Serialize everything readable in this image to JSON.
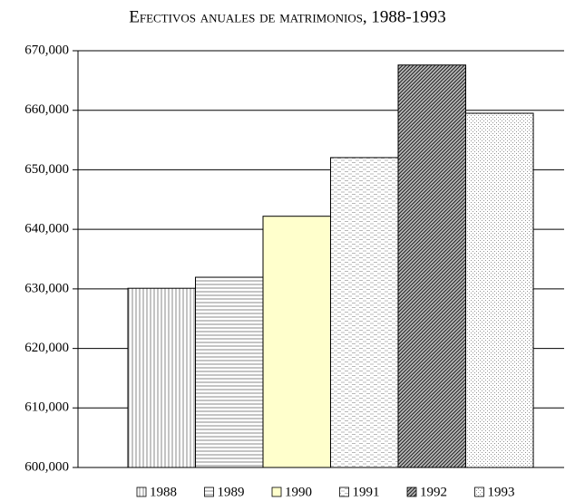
{
  "chart_data": {
    "type": "bar",
    "title": "Efectivos anuales de matrimonios, 1988-1993",
    "series": [
      {
        "name": "1988",
        "color": "#ffffff",
        "pattern": "vertical",
        "values": [
          630100
        ]
      },
      {
        "name": "1989",
        "color": "#ffffff",
        "pattern": "horizontal",
        "values": [
          631950
        ]
      },
      {
        "name": "1990",
        "color": "#ffffcc",
        "pattern": "solid",
        "values": [
          642200
        ]
      },
      {
        "name": "1991",
        "color": "#ffffff",
        "pattern": "dashed",
        "values": [
          652050
        ]
      },
      {
        "name": "1992",
        "color": "#ffffff",
        "pattern": "diagonal",
        "values": [
          667600
        ]
      },
      {
        "name": "1993",
        "color": "#ffffff",
        "pattern": "dotted",
        "values": [
          659500
        ]
      }
    ],
    "ylim": [
      600000,
      670000
    ],
    "yticks": [
      {
        "value": 600000,
        "label": "600,000"
      },
      {
        "value": 610000,
        "label": "610,000"
      },
      {
        "value": 620000,
        "label": "620,000"
      },
      {
        "value": 630000,
        "label": "630,000"
      },
      {
        "value": 640000,
        "label": "640,000"
      },
      {
        "value": 650000,
        "label": "650,000"
      },
      {
        "value": 660000,
        "label": "660,000"
      },
      {
        "value": 670000,
        "label": "670,000"
      }
    ],
    "grid": true,
    "legend": "bottom"
  }
}
